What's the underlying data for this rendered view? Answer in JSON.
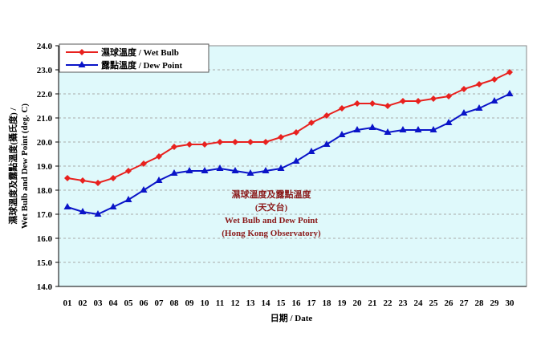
{
  "chart_data": {
    "type": "line",
    "xlabel": "日期 / Date",
    "ylabel_line1": "濕球溫度及露點溫度(攝氏度) /",
    "ylabel_line2": "Wet Bulb and Dew Point (deg. C)",
    "ylim": [
      14.0,
      24.0
    ],
    "yticks": [
      "14.0",
      "15.0",
      "16.0",
      "17.0",
      "18.0",
      "19.0",
      "20.0",
      "21.0",
      "22.0",
      "23.0",
      "24.0"
    ],
    "grid": true,
    "legend_position": "top-left",
    "background_color": "#dff9fb",
    "categories": [
      "01",
      "02",
      "03",
      "04",
      "05",
      "06",
      "07",
      "08",
      "09",
      "10",
      "11",
      "12",
      "13",
      "14",
      "15",
      "16",
      "17",
      "18",
      "19",
      "20",
      "21",
      "22",
      "23",
      "24",
      "25",
      "26",
      "27",
      "28",
      "29",
      "30"
    ],
    "series": [
      {
        "name": "濕球溫度 / Wet Bulb",
        "color": "#e8211e",
        "marker": "diamond",
        "values": [
          18.5,
          18.4,
          18.3,
          18.5,
          18.8,
          19.1,
          19.4,
          19.8,
          19.9,
          19.9,
          20.0,
          20.0,
          20.0,
          20.0,
          20.2,
          20.4,
          20.8,
          21.1,
          21.4,
          21.6,
          21.6,
          21.5,
          21.7,
          21.7,
          21.8,
          21.9,
          22.2,
          22.4,
          22.6,
          22.9
        ]
      },
      {
        "name": "露點溫度 / Dew Point",
        "color": "#0a14c8",
        "marker": "triangle",
        "values": [
          17.3,
          17.1,
          17.0,
          17.3,
          17.6,
          18.0,
          18.4,
          18.7,
          18.8,
          18.8,
          18.9,
          18.8,
          18.7,
          18.8,
          18.9,
          19.2,
          19.6,
          19.9,
          20.3,
          20.5,
          20.6,
          20.4,
          20.5,
          20.5,
          20.5,
          20.8,
          21.2,
          21.4,
          21.7,
          22.0
        ]
      }
    ],
    "annotations": [
      "濕球溫度及露點溫度",
      "(天文台)",
      "Wet Bulb and Dew Point",
      "(Hong Kong Observatory)"
    ]
  }
}
